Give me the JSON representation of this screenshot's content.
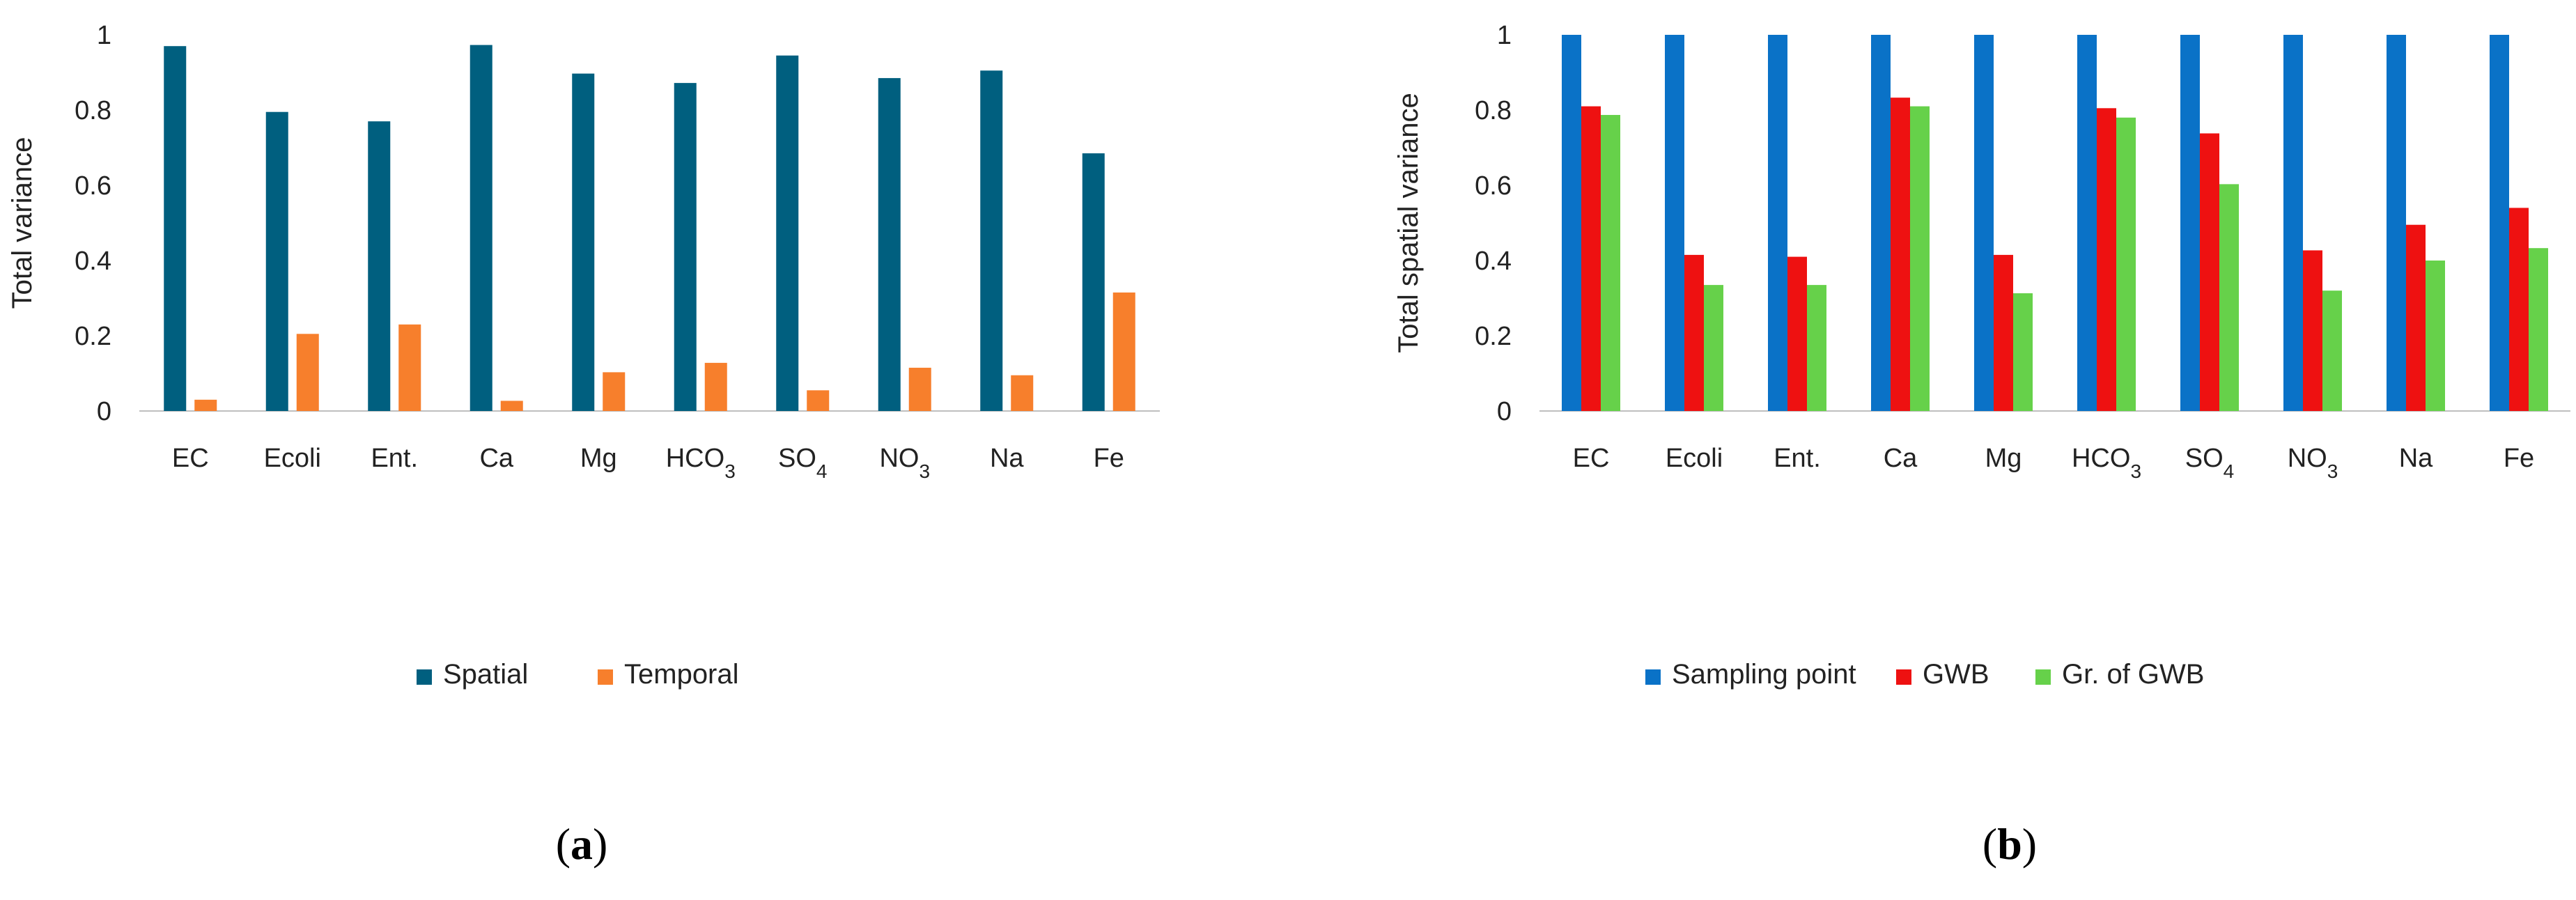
{
  "chart_data": [
    {
      "type": "bar",
      "panel_label": "a",
      "ylabel": "Total variance",
      "ylim": [
        0,
        1
      ],
      "yticks": [
        "0",
        "0.2",
        "0.4",
        "0.6",
        "0.8",
        "1"
      ],
      "categories": [
        "EC",
        "Ecoli",
        "Ent.",
        "Ca",
        "Mg",
        "HCO3",
        "SO4",
        "NO3",
        "Na",
        "Fe"
      ],
      "series": [
        {
          "name": "Spatial",
          "color": "#005f7f",
          "values": [
            0.97,
            0.795,
            0.77,
            0.973,
            0.897,
            0.872,
            0.945,
            0.885,
            0.905,
            0.685
          ]
        },
        {
          "name": "Temporal",
          "color": "#f77f2c",
          "values": [
            0.03,
            0.205,
            0.23,
            0.027,
            0.103,
            0.128,
            0.055,
            0.115,
            0.095,
            0.315
          ]
        }
      ],
      "legend": "bottom"
    },
    {
      "type": "bar",
      "panel_label": "b",
      "ylabel": "Total spatial variance",
      "ylim": [
        0,
        1
      ],
      "yticks": [
        "0",
        "0.2",
        "0.4",
        "0.6",
        "0.8",
        "1"
      ],
      "categories": [
        "EC",
        "Ecoli",
        "Ent.",
        "Ca",
        "Mg",
        "HCO3",
        "SO4",
        "NO3",
        "Na",
        "Fe"
      ],
      "series": [
        {
          "name": "Sampling point",
          "color": "#0a72c7",
          "values": [
            1,
            1,
            1,
            1,
            1,
            1,
            1,
            1,
            1,
            1
          ]
        },
        {
          "name": "GWB",
          "color": "#ee1111",
          "values": [
            0.81,
            0.415,
            0.41,
            0.833,
            0.415,
            0.805,
            0.738,
            0.427,
            0.495,
            0.54
          ]
        },
        {
          "name": "Gr. of GWB",
          "color": "#66d14a",
          "values": [
            0.787,
            0.335,
            0.335,
            0.81,
            0.313,
            0.78,
            0.603,
            0.32,
            0.4,
            0.433
          ]
        }
      ],
      "legend": "bottom"
    }
  ]
}
